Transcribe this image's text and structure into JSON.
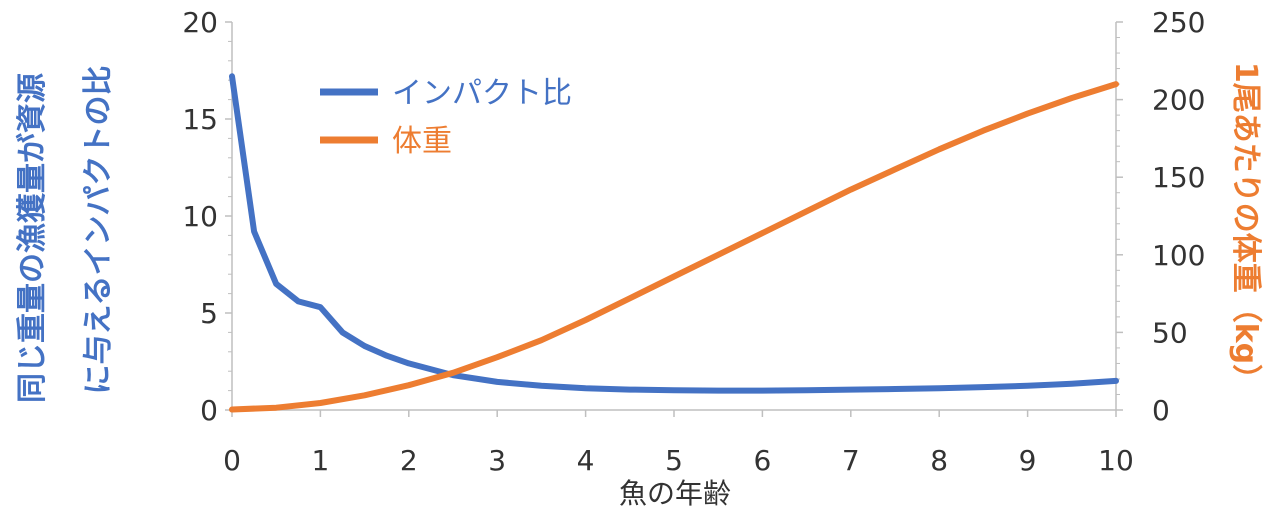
{
  "chart_data": {
    "type": "line",
    "xlabel": "魚の年齢",
    "ylabel_left_lines": [
      "同じ重量の漁獲量が資源",
      "に与えるインパクトの比"
    ],
    "ylabel_right": "1尾あたりの体重（kg）",
    "xlim": [
      0,
      10
    ],
    "ylim_left": [
      0,
      20
    ],
    "ylim_right": [
      0,
      250
    ],
    "x_ticks": [
      "0",
      "1",
      "2",
      "3",
      "4",
      "5",
      "6",
      "7",
      "8",
      "9",
      "10"
    ],
    "y_left_ticks": [
      "0",
      "5",
      "10",
      "15",
      "20"
    ],
    "y_right_ticks": [
      "0",
      "50",
      "100",
      "150",
      "200",
      "250"
    ],
    "legend_position": "top-left",
    "series": [
      {
        "name": "インパクト比",
        "axis": "left",
        "color": "#4472C4",
        "x": [
          0,
          0.25,
          0.5,
          0.75,
          1.0,
          1.25,
          1.5,
          1.75,
          2,
          2.5,
          3,
          3.5,
          4,
          4.5,
          5,
          5.5,
          6,
          6.5,
          7,
          7.5,
          8,
          8.5,
          9,
          9.5,
          10
        ],
        "y": [
          17.2,
          9.2,
          6.5,
          5.6,
          5.3,
          4.0,
          3.3,
          2.8,
          2.4,
          1.8,
          1.45,
          1.25,
          1.12,
          1.05,
          1.02,
          1.0,
          1.0,
          1.02,
          1.05,
          1.08,
          1.12,
          1.18,
          1.25,
          1.35,
          1.5
        ]
      },
      {
        "name": "体重",
        "axis": "right",
        "color": "#ED7D31",
        "x": [
          0,
          0.5,
          1,
          1.5,
          2,
          2.5,
          3,
          3.5,
          4,
          4.5,
          5,
          5.5,
          6,
          6.5,
          7,
          7.5,
          8,
          8.5,
          9,
          9.5,
          10
        ],
        "y": [
          0.3,
          1.5,
          4.5,
          9.5,
          16,
          24,
          34,
          45,
          58,
          72,
          86,
          100,
          114,
          128,
          142,
          155,
          168,
          180,
          191,
          201,
          210
        ]
      }
    ]
  }
}
